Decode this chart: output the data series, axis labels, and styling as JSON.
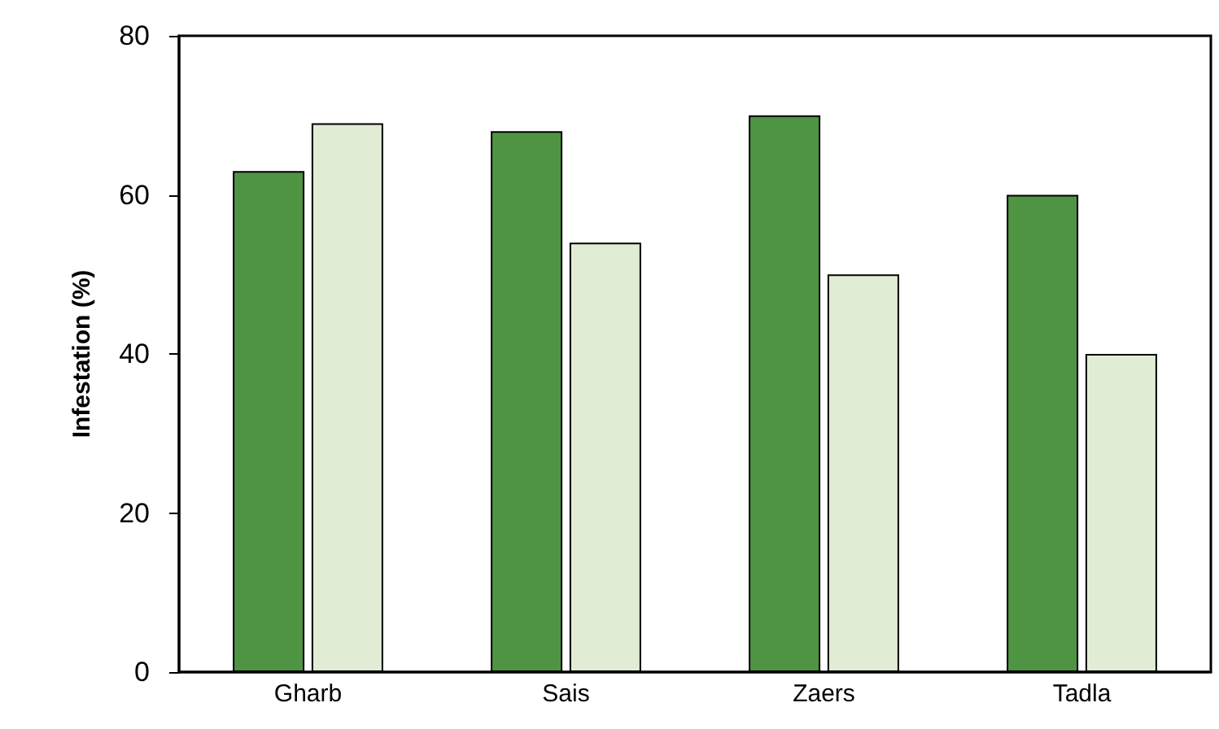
{
  "chart_data": {
    "type": "bar",
    "ylabel": "Infestation (%)",
    "categories": [
      "Gharb",
      "Sais",
      "Zaers",
      "Tadla"
    ],
    "series": [
      {
        "color": "#4f9443",
        "values": [
          63,
          68,
          70,
          60
        ]
      },
      {
        "color": "#e1ecd5",
        "values": [
          69,
          54,
          50,
          40
        ]
      }
    ],
    "ylim": [
      0,
      80
    ],
    "yticks": [
      0,
      20,
      40,
      60,
      80
    ],
    "grid": false
  }
}
